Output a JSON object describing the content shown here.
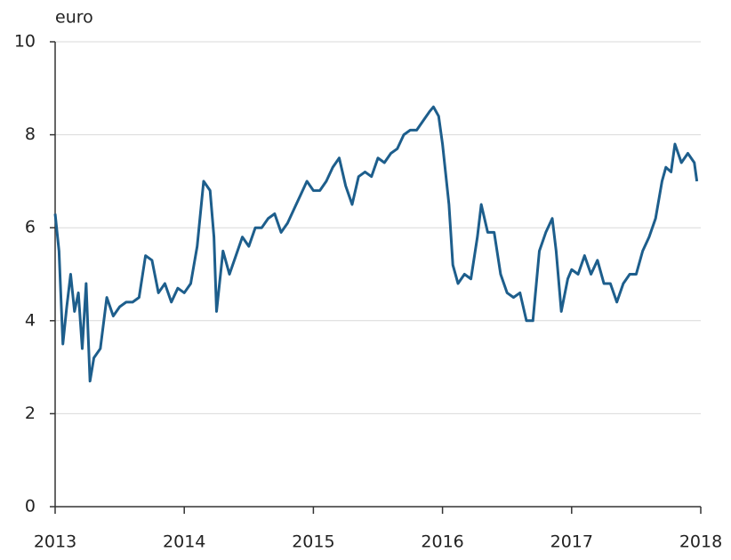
{
  "chart_data": {
    "type": "line",
    "y_axis_label": "euro",
    "x": [
      2013.0,
      2013.03,
      2013.06,
      2013.09,
      2013.12,
      2013.15,
      2013.18,
      2013.21,
      2013.24,
      2013.27,
      2013.3,
      2013.35,
      2013.4,
      2013.45,
      2013.5,
      2013.55,
      2013.6,
      2013.65,
      2013.7,
      2013.75,
      2013.8,
      2013.85,
      2013.9,
      2013.95,
      2014.0,
      2014.05,
      2014.1,
      2014.15,
      2014.2,
      2014.23,
      2014.25,
      2014.3,
      2014.35,
      2014.4,
      2014.45,
      2014.5,
      2014.55,
      2014.6,
      2014.65,
      2014.7,
      2014.75,
      2014.8,
      2014.85,
      2014.9,
      2014.95,
      2015.0,
      2015.05,
      2015.1,
      2015.15,
      2015.2,
      2015.25,
      2015.3,
      2015.35,
      2015.4,
      2015.45,
      2015.5,
      2015.55,
      2015.6,
      2015.65,
      2015.7,
      2015.75,
      2015.8,
      2015.85,
      2015.9,
      2015.93,
      2015.97,
      2016.0,
      2016.05,
      2016.08,
      2016.12,
      2016.17,
      2016.22,
      2016.27,
      2016.3,
      2016.35,
      2016.4,
      2016.45,
      2016.5,
      2016.55,
      2016.6,
      2016.65,
      2016.7,
      2016.75,
      2016.8,
      2016.85,
      2016.88,
      2016.92,
      2016.97,
      2017.0,
      2017.05,
      2017.1,
      2017.15,
      2017.2,
      2017.25,
      2017.3,
      2017.35,
      2017.4,
      2017.45,
      2017.5,
      2017.55,
      2017.6,
      2017.65,
      2017.7,
      2017.73,
      2017.77,
      2017.8,
      2017.85,
      2017.9,
      2017.95,
      2017.97
    ],
    "series": [
      {
        "color": "#1d5e8c",
        "values": [
          6.3,
          5.5,
          3.5,
          4.3,
          5.0,
          4.2,
          4.6,
          3.4,
          4.8,
          2.7,
          3.2,
          3.4,
          4.5,
          4.1,
          4.3,
          4.4,
          4.4,
          4.5,
          5.4,
          5.3,
          4.6,
          4.8,
          4.4,
          4.7,
          4.6,
          4.8,
          5.6,
          7.0,
          6.8,
          5.8,
          4.2,
          5.5,
          5.0,
          5.4,
          5.8,
          5.6,
          6.0,
          6.0,
          6.2,
          6.3,
          5.9,
          6.1,
          6.4,
          6.7,
          7.0,
          6.8,
          6.8,
          7.0,
          7.3,
          7.5,
          6.9,
          6.5,
          7.1,
          7.2,
          7.1,
          7.5,
          7.4,
          7.6,
          7.7,
          8.0,
          8.1,
          8.1,
          8.3,
          8.5,
          8.6,
          8.4,
          7.8,
          6.5,
          5.2,
          4.8,
          5.0,
          4.9,
          5.8,
          6.5,
          5.9,
          5.9,
          5.0,
          4.6,
          4.5,
          4.6,
          4.0,
          4.0,
          5.5,
          5.9,
          6.2,
          5.5,
          4.2,
          4.9,
          5.1,
          5.0,
          5.4,
          5.0,
          5.3,
          4.8,
          4.8,
          4.4,
          4.8,
          5.0,
          5.0,
          5.5,
          5.8,
          6.2,
          7.0,
          7.3,
          7.2,
          7.8,
          7.4,
          7.6,
          7.4,
          7.0
        ]
      }
    ],
    "xlim": [
      2013,
      2018
    ],
    "xticks": [
      2013,
      2014,
      2015,
      2016,
      2017,
      2018
    ],
    "ylim": [
      0,
      10
    ],
    "yticks": [
      0,
      2,
      4,
      6,
      8,
      10
    ],
    "grid": true
  }
}
